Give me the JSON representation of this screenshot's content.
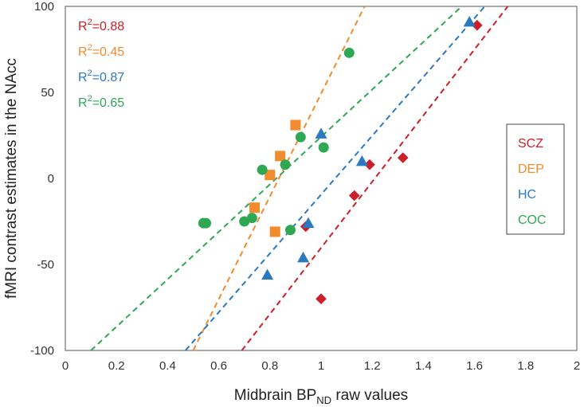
{
  "chart_data": {
    "type": "scatter",
    "xlabel": "Midbrain BP",
    "xlabel_sub": "ND",
    "xlabel_suffix": " raw values",
    "ylabel": "fMRI contrast estimates in the NAcc",
    "xlim": [
      0,
      2
    ],
    "ylim": [
      -100,
      100
    ],
    "x_ticks": [
      "0",
      "0.2",
      "0.4",
      "0.6",
      "0.8",
      "1",
      "1.2",
      "1.4",
      "1.6",
      "1.8",
      "2"
    ],
    "y_ticks": [
      "100",
      "50",
      "0",
      "-50",
      "-100"
    ],
    "grid": false,
    "legend_position": "right",
    "series": [
      {
        "name": "SCZ",
        "color": "#cc1f2a",
        "marker": "diamond",
        "r2_label": "0.88",
        "points": [
          [
            1.19,
            8
          ],
          [
            1.13,
            -10
          ],
          [
            1.32,
            12
          ],
          [
            0.94,
            -28
          ],
          [
            1.0,
            -70
          ],
          [
            1.61,
            89
          ]
        ],
        "fit": [
          [
            0.69,
            -100
          ],
          [
            1.73,
            100
          ]
        ]
      },
      {
        "name": "DEP",
        "color": "#f28a2e",
        "marker": "square",
        "r2_label": "0.45",
        "points": [
          [
            0.9,
            31
          ],
          [
            0.84,
            13
          ],
          [
            0.8,
            2
          ],
          [
            0.74,
            -17
          ],
          [
            0.82,
            -31
          ]
        ],
        "fit": [
          [
            0.5,
            -100
          ],
          [
            1.17,
            100
          ]
        ]
      },
      {
        "name": "HC",
        "color": "#2a7ac2",
        "marker": "triangle",
        "r2_label": "0.87",
        "points": [
          [
            1.58,
            91
          ],
          [
            1.0,
            26
          ],
          [
            1.16,
            10
          ],
          [
            0.95,
            -26
          ],
          [
            0.93,
            -46
          ],
          [
            0.79,
            -56
          ]
        ],
        "fit": [
          [
            0.47,
            -100
          ],
          [
            1.64,
            100
          ]
        ]
      },
      {
        "name": "COC",
        "color": "#2ea853",
        "marker": "circle",
        "r2_label": "0.65",
        "points": [
          [
            1.11,
            73
          ],
          [
            0.92,
            24
          ],
          [
            1.01,
            18
          ],
          [
            0.86,
            8
          ],
          [
            0.77,
            5
          ],
          [
            0.54,
            -26
          ],
          [
            0.55,
            -26
          ],
          [
            0.7,
            -25
          ],
          [
            0.73,
            -23
          ],
          [
            0.88,
            -30
          ]
        ],
        "fit": [
          [
            0.1,
            -100
          ],
          [
            1.55,
            100
          ]
        ]
      }
    ]
  }
}
